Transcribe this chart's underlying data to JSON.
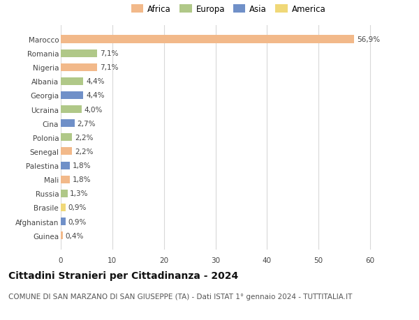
{
  "countries": [
    "Guinea",
    "Afghanistan",
    "Brasile",
    "Russia",
    "Mali",
    "Palestina",
    "Senegal",
    "Polonia",
    "Cina",
    "Ucraina",
    "Georgia",
    "Albania",
    "Nigeria",
    "Romania",
    "Marocco"
  ],
  "values": [
    0.4,
    0.9,
    0.9,
    1.3,
    1.8,
    1.8,
    2.2,
    2.2,
    2.7,
    4.0,
    4.4,
    4.4,
    7.1,
    7.1,
    56.9
  ],
  "labels": [
    "0,4%",
    "0,9%",
    "0,9%",
    "1,3%",
    "1,8%",
    "1,8%",
    "2,2%",
    "2,2%",
    "2,7%",
    "4,0%",
    "4,4%",
    "4,4%",
    "7,1%",
    "7,1%",
    "56,9%"
  ],
  "continents": [
    "Africa",
    "Asia",
    "America",
    "Europa",
    "Africa",
    "Asia",
    "Africa",
    "Europa",
    "Asia",
    "Europa",
    "Asia",
    "Europa",
    "Africa",
    "Europa",
    "Africa"
  ],
  "colors": {
    "Africa": "#F2B98A",
    "Europa": "#B0C888",
    "Asia": "#7090C8",
    "America": "#F0D878"
  },
  "legend_order": [
    "Africa",
    "Europa",
    "Asia",
    "America"
  ],
  "title": "Cittadini Stranieri per Cittadinanza - 2024",
  "subtitle": "COMUNE DI SAN MARZANO DI SAN GIUSEPPE (TA) - Dati ISTAT 1° gennaio 2024 - TUTTITALIA.IT",
  "xlim": [
    0,
    65
  ],
  "xticks": [
    0,
    10,
    20,
    30,
    40,
    50,
    60
  ],
  "background_color": "#ffffff",
  "grid_color": "#d8d8d8",
  "bar_height": 0.55,
  "title_fontsize": 10,
  "subtitle_fontsize": 7.5,
  "label_fontsize": 7.5,
  "tick_fontsize": 7.5,
  "legend_fontsize": 8.5
}
